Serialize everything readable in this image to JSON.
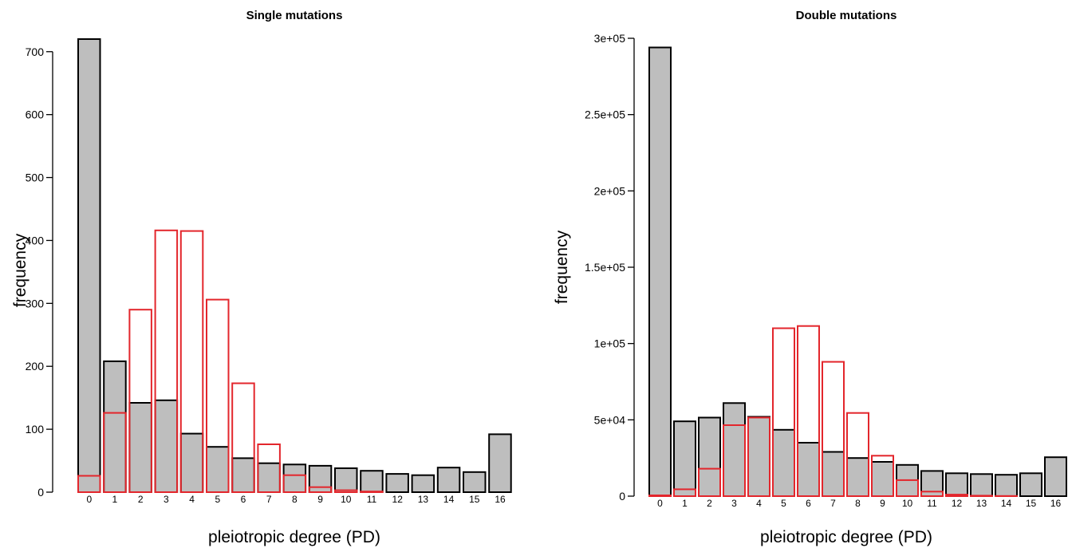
{
  "chart_data": [
    {
      "type": "bar",
      "title": "Single mutations",
      "xlabel": "pleiotropic degree (PD)",
      "ylabel": "frequency",
      "categories": [
        "0",
        "1",
        "2",
        "3",
        "4",
        "5",
        "6",
        "7",
        "8",
        "9",
        "10",
        "11",
        "12",
        "13",
        "14",
        "15",
        "16"
      ],
      "ylim": [
        0,
        720
      ],
      "yticks": [
        0,
        100,
        200,
        300,
        400,
        500,
        600,
        700
      ],
      "ytick_labels": [
        "0",
        "100",
        "200",
        "300",
        "400",
        "500",
        "600",
        "700"
      ],
      "grid": false,
      "series": [
        {
          "values": [
            720,
            208,
            142,
            146,
            93,
            72,
            54,
            46,
            44,
            42,
            38,
            34,
            29,
            27,
            39,
            32,
            92
          ],
          "color": "#bebebe",
          "edge": "#000000",
          "style": "filled"
        },
        {
          "values": [
            26,
            126,
            290,
            416,
            415,
            306,
            173,
            76,
            27,
            8,
            3,
            1,
            0,
            0,
            0,
            0,
            0
          ],
          "color": "#e3262c",
          "style": "outline"
        }
      ]
    },
    {
      "type": "bar",
      "title": "Double mutations",
      "xlabel": "pleiotropic degree (PD)",
      "ylabel": "frequency",
      "categories": [
        "0",
        "1",
        "2",
        "3",
        "4",
        "5",
        "6",
        "7",
        "8",
        "9",
        "10",
        "11",
        "12",
        "13",
        "14",
        "15",
        "16"
      ],
      "ylim": [
        0,
        300000
      ],
      "yticks": [
        0,
        50000,
        100000,
        150000,
        200000,
        250000,
        300000
      ],
      "ytick_labels": [
        "0",
        "5e+04",
        "1e+05",
        "1.5e+05",
        "2e+05",
        "2.5e+05",
        "3e+05"
      ],
      "grid": false,
      "series": [
        {
          "values": [
            294000,
            49000,
            51500,
            61000,
            52000,
            43500,
            35000,
            29000,
            25000,
            22500,
            20500,
            16500,
            15000,
            14500,
            14000,
            15000,
            25500
          ],
          "color": "#bebebe",
          "edge": "#000000",
          "style": "filled"
        },
        {
          "values": [
            500,
            4500,
            18000,
            46500,
            51500,
            110000,
            111500,
            88000,
            54500,
            26500,
            10500,
            3000,
            1000,
            300,
            100,
            0,
            0
          ],
          "color": "#e3262c",
          "style": "outline"
        }
      ]
    }
  ]
}
